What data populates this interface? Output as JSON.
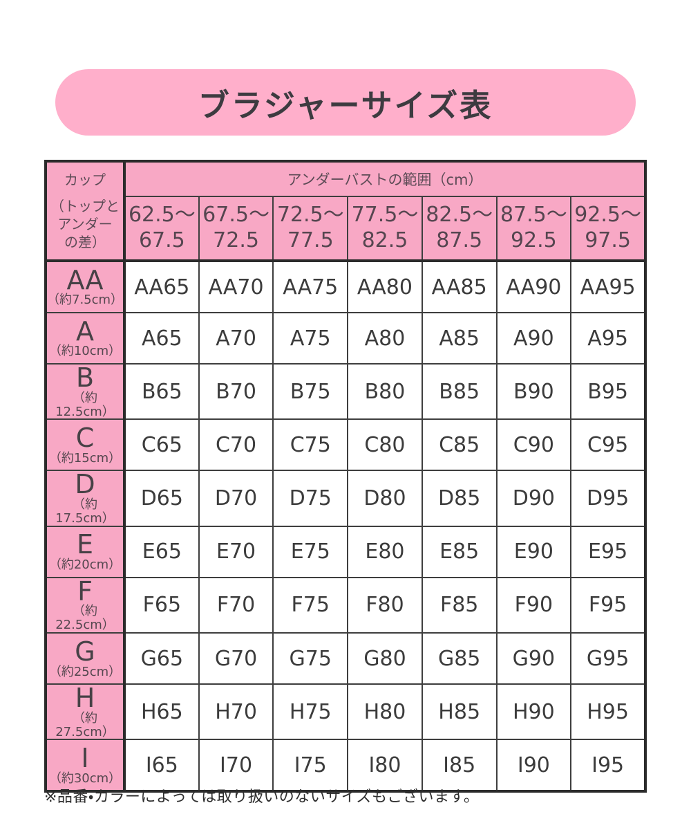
{
  "title": "ブラジャーサイズ表",
  "colors": {
    "banner_pink": "#ffafcb",
    "header_pink": "#f8a8c5",
    "border_dark": "#2b2b2b",
    "grid_line": "#3e3e3e",
    "cell_text": "#3c3c3c",
    "header_text": "#5d4b56"
  },
  "table": {
    "corner_lines": [
      "カップ",
      "（トップと",
      "アンダー",
      "の差）"
    ],
    "band_header": "アンダーバストの範囲（cm）",
    "col_headers": [
      [
        "62.5～",
        "67.5"
      ],
      [
        "67.5～",
        "72.5"
      ],
      [
        "72.5～",
        "77.5"
      ],
      [
        "77.5～",
        "82.5"
      ],
      [
        "82.5～",
        "87.5"
      ],
      [
        "87.5～",
        "92.5"
      ],
      [
        "92.5～",
        "97.5"
      ]
    ],
    "rows": [
      {
        "cup": "AA",
        "diff": "（約7.5cm）",
        "cells": [
          "AA65",
          "AA70",
          "AA75",
          "AA80",
          "AA85",
          "AA90",
          "AA95"
        ]
      },
      {
        "cup": "A",
        "diff": "（約10cm）",
        "cells": [
          "A65",
          "A70",
          "A75",
          "A80",
          "A85",
          "A90",
          "A95"
        ]
      },
      {
        "cup": "B",
        "diff": "（約12.5cm）",
        "cells": [
          "B65",
          "B70",
          "B75",
          "B80",
          "B85",
          "B90",
          "B95"
        ]
      },
      {
        "cup": "C",
        "diff": "（約15cm）",
        "cells": [
          "C65",
          "C70",
          "C75",
          "C80",
          "C85",
          "C90",
          "C95"
        ]
      },
      {
        "cup": "D",
        "diff": "（約17.5cm）",
        "cells": [
          "D65",
          "D70",
          "D75",
          "D80",
          "D85",
          "D90",
          "D95"
        ]
      },
      {
        "cup": "E",
        "diff": "（約20cm）",
        "cells": [
          "E65",
          "E70",
          "E75",
          "E80",
          "E85",
          "E90",
          "E95"
        ]
      },
      {
        "cup": "F",
        "diff": "（約22.5cm）",
        "cells": [
          "F65",
          "F70",
          "F75",
          "F80",
          "F85",
          "F90",
          "F95"
        ]
      },
      {
        "cup": "G",
        "diff": "（約25cm）",
        "cells": [
          "G65",
          "G70",
          "G75",
          "G80",
          "G85",
          "G90",
          "G95"
        ]
      },
      {
        "cup": "H",
        "diff": "（約27.5cm）",
        "cells": [
          "H65",
          "H70",
          "H75",
          "H80",
          "H85",
          "H90",
          "H95"
        ]
      },
      {
        "cup": "I",
        "diff": "（約30cm）",
        "cells": [
          "I65",
          "I70",
          "I75",
          "I80",
          "I85",
          "I90",
          "I95"
        ]
      }
    ]
  },
  "footnote": "※品番・カラーによっては取り扱いのないサイズもございます。"
}
